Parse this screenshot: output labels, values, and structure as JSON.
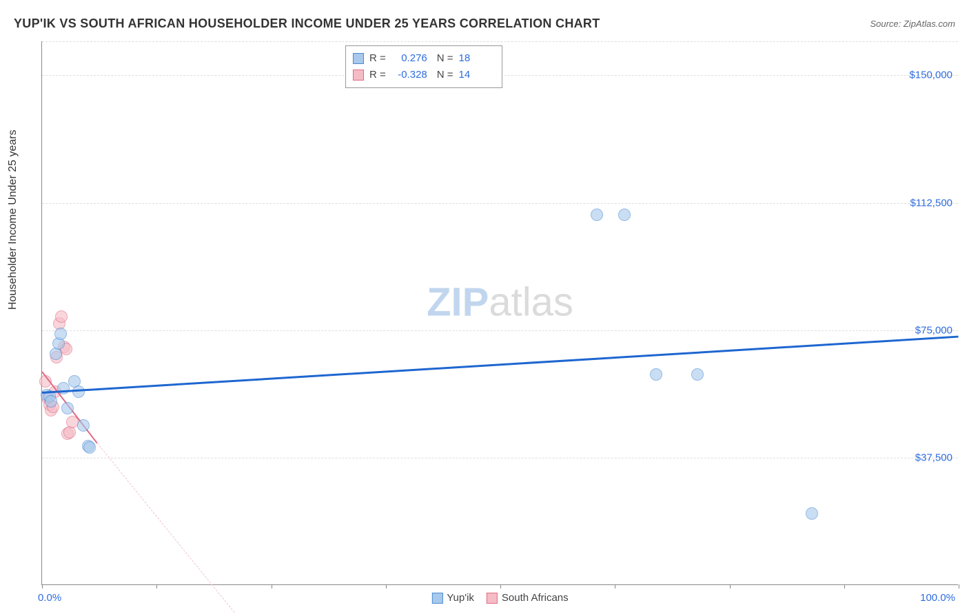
{
  "header": {
    "title": "YUP'IK VS SOUTH AFRICAN HOUSEHOLDER INCOME UNDER 25 YEARS CORRELATION CHART",
    "source_prefix": "Source: ",
    "source_name": "ZipAtlas.com"
  },
  "chart": {
    "type": "scatter",
    "ylabel": "Householder Income Under 25 years",
    "background_color": "#ffffff",
    "grid_color": "#dddddd",
    "axis_color": "#888888",
    "text_color": "#333333",
    "tick_label_color": "#2d6cdf",
    "xlim": [
      0,
      100
    ],
    "ylim": [
      0,
      160000
    ],
    "xtick_positions": [
      0,
      12.5,
      25,
      37.5,
      50,
      62.5,
      75,
      87.5,
      100
    ],
    "xtick_labels_shown": {
      "0": "0.0%",
      "100": "100.0%"
    },
    "ytick_positions": [
      37500,
      75000,
      112500,
      150000
    ],
    "ytick_labels": [
      "$37,500",
      "$75,000",
      "$112,500",
      "$150,000"
    ],
    "point_radius": 9,
    "point_border_width": 1,
    "point_fill_opacity": 0.6,
    "series": [
      {
        "name": "Yup'ik",
        "fill_color": "#a8c9ec",
        "border_color": "#4a8ad4",
        "r_value": "0.276",
        "n_value": "18",
        "trend": {
          "x1": 0,
          "y1": 57000,
          "x2": 100,
          "y2": 73500,
          "color": "#1e66d0",
          "width": 3,
          "dash": "solid"
        },
        "points": [
          {
            "x": 0.5,
            "y": 56000
          },
          {
            "x": 0.8,
            "y": 55500
          },
          {
            "x": 1.0,
            "y": 54000
          },
          {
            "x": 1.5,
            "y": 68000
          },
          {
            "x": 1.8,
            "y": 71000
          },
          {
            "x": 2.0,
            "y": 74000
          },
          {
            "x": 2.3,
            "y": 58000
          },
          {
            "x": 2.8,
            "y": 52000
          },
          {
            "x": 3.5,
            "y": 60000
          },
          {
            "x": 4.0,
            "y": 57000
          },
          {
            "x": 4.5,
            "y": 47000
          },
          {
            "x": 5.0,
            "y": 41000
          },
          {
            "x": 5.2,
            "y": 40500
          },
          {
            "x": 60.5,
            "y": 109000
          },
          {
            "x": 63.5,
            "y": 109000
          },
          {
            "x": 67.0,
            "y": 62000
          },
          {
            "x": 71.5,
            "y": 62000
          },
          {
            "x": 84.0,
            "y": 21000
          }
        ]
      },
      {
        "name": "South Africans",
        "fill_color": "#f5bcc6",
        "border_color": "#e06b85",
        "r_value": "-0.328",
        "n_value": "14",
        "trend_solid": {
          "x1": 0,
          "y1": 63000,
          "x2": 6,
          "y2": 42000,
          "color": "#e06b85",
          "width": 2
        },
        "trend_dash": {
          "x1": 6,
          "y1": 42000,
          "x2": 21,
          "y2": -8000,
          "color": "#f0c4cc",
          "width": 1.5
        },
        "points": [
          {
            "x": 0.4,
            "y": 60000
          },
          {
            "x": 0.6,
            "y": 55000
          },
          {
            "x": 0.8,
            "y": 53000
          },
          {
            "x": 1.0,
            "y": 51500
          },
          {
            "x": 1.2,
            "y": 52500
          },
          {
            "x": 1.4,
            "y": 57000
          },
          {
            "x": 1.6,
            "y": 67000
          },
          {
            "x": 1.9,
            "y": 77000
          },
          {
            "x": 2.1,
            "y": 79000
          },
          {
            "x": 2.4,
            "y": 70000
          },
          {
            "x": 2.6,
            "y": 69500
          },
          {
            "x": 2.8,
            "y": 44500
          },
          {
            "x": 3.0,
            "y": 45000
          },
          {
            "x": 3.3,
            "y": 48000
          }
        ]
      }
    ],
    "stats_box": {
      "r_label": "R =",
      "n_label": "N ="
    },
    "legend": {
      "items": [
        "Yup'ik",
        "South Africans"
      ]
    },
    "watermark": {
      "zip": "ZIP",
      "atlas": "atlas"
    }
  }
}
